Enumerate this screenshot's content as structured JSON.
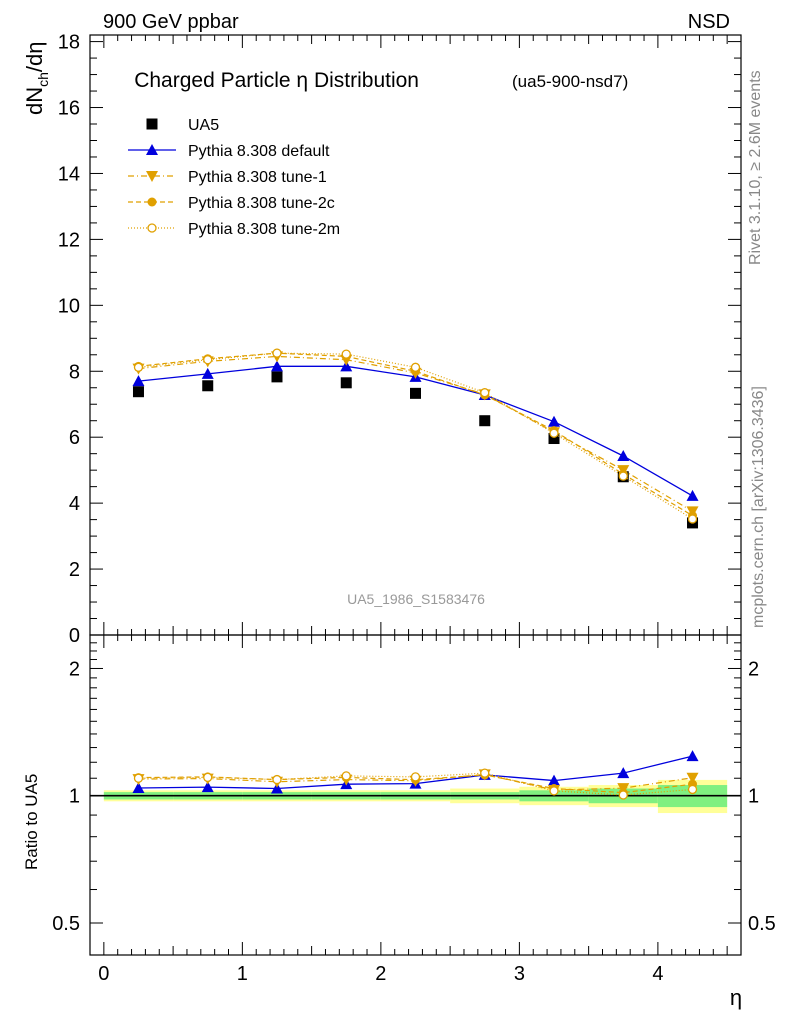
{
  "header": {
    "left": "900 GeV ppbar",
    "right": "NSD"
  },
  "title": {
    "main": "Charged Particle η Distribution",
    "sub": "(ua5-900-nsd7)"
  },
  "watermark": "UA5_1986_S1583476",
  "side_labels": {
    "rivet": "Rivet 3.1.10, ≥ 2.6M events",
    "mcplots": "mcplots.cern.ch [arXiv:1306.3436]"
  },
  "colors": {
    "data": "#000000",
    "default": "#0000dd",
    "tune": "#e0a000",
    "band_inner": "#80f080",
    "band_outer": "#ffff99"
  },
  "chart_data": [
    {
      "type": "scatter",
      "ylabel": "dN_ch/dη",
      "xlim": [
        -0.1,
        4.6
      ],
      "ylim": [
        0,
        18.2
      ],
      "yticks": [
        0,
        2,
        4,
        6,
        8,
        10,
        12,
        14,
        16,
        18
      ],
      "x": [
        0.25,
        0.75,
        1.25,
        1.75,
        2.25,
        2.75,
        3.25,
        3.75,
        4.25
      ],
      "legend_position": "top-left",
      "series": [
        {
          "name": "UA5",
          "style": "data",
          "values": [
            7.38,
            7.56,
            7.83,
            7.65,
            7.33,
            6.5,
            5.96,
            4.8,
            3.4
          ]
        },
        {
          "name": "Pythia 8.308 default",
          "style": "default",
          "values": [
            7.7,
            7.92,
            8.15,
            8.15,
            7.83,
            7.28,
            6.47,
            5.43,
            4.22
          ]
        },
        {
          "name": "Pythia 8.308 tune-1",
          "style": "tune1",
          "values": [
            8.08,
            8.3,
            8.45,
            8.35,
            7.95,
            7.3,
            6.15,
            5.0,
            3.75
          ]
        },
        {
          "name": "Pythia 8.308 tune-2c",
          "style": "tune2c",
          "values": [
            8.15,
            8.38,
            8.55,
            8.45,
            8.0,
            7.28,
            6.2,
            4.88,
            3.62
          ]
        },
        {
          "name": "Pythia 8.308 tune-2m",
          "style": "tune2m",
          "values": [
            8.12,
            8.35,
            8.55,
            8.52,
            8.12,
            7.35,
            6.12,
            4.82,
            3.52
          ]
        }
      ]
    },
    {
      "type": "scatter",
      "xlabel": "η",
      "ylabel": "Ratio to UA5",
      "y_scale": "log",
      "xlim": [
        -0.1,
        4.6
      ],
      "ylim": [
        0.42,
        2.4
      ],
      "yticks": [
        0.5,
        1,
        2
      ],
      "ytick_labels": [
        "0.5",
        "1",
        "2"
      ],
      "xticks": [
        0,
        1,
        2,
        3,
        4
      ],
      "x": [
        0.25,
        0.75,
        1.25,
        1.75,
        2.25,
        2.75,
        3.25,
        3.75,
        4.25
      ],
      "uncertainty_band": {
        "edges": [
          0,
          0.5,
          1,
          1.5,
          2,
          2.5,
          3,
          3.5,
          4,
          4.5
        ],
        "stat": [
          0.02,
          0.02,
          0.02,
          0.02,
          0.02,
          0.02,
          0.03,
          0.04,
          0.06
        ],
        "total": [
          0.03,
          0.03,
          0.03,
          0.03,
          0.03,
          0.04,
          0.05,
          0.06,
          0.09
        ]
      },
      "series": [
        {
          "name": "Pythia 8.308 default",
          "style": "default",
          "values": [
            1.043,
            1.048,
            1.04,
            1.065,
            1.068,
            1.12,
            1.086,
            1.131,
            1.241
          ]
        },
        {
          "name": "Pythia 8.308 tune-1",
          "style": "tune1",
          "values": [
            1.095,
            1.098,
            1.079,
            1.092,
            1.085,
            1.123,
            1.032,
            1.042,
            1.103
          ]
        },
        {
          "name": "Pythia 8.308 tune-2c",
          "style": "tune2c",
          "values": [
            1.104,
            1.108,
            1.092,
            1.105,
            1.091,
            1.12,
            1.04,
            1.017,
            1.065
          ]
        },
        {
          "name": "Pythia 8.308 tune-2m",
          "style": "tune2m",
          "values": [
            1.1,
            1.105,
            1.092,
            1.114,
            1.108,
            1.131,
            1.027,
            1.004,
            1.035
          ]
        }
      ]
    }
  ]
}
